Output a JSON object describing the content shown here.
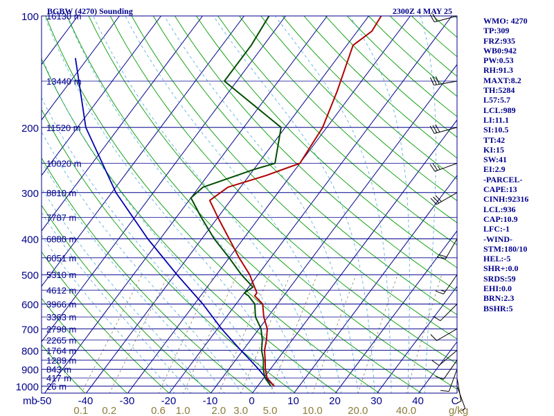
{
  "header": {
    "station": "BGBW (4270) Sounding",
    "time": "2300Z  4 MAY 25"
  },
  "colors": {
    "frame": "#00008b",
    "isobar": "#00008b",
    "isotherm": "#00008b",
    "dry_adiabat": "#009a00",
    "moist_adiabat": "#4aa7d9",
    "mixing_ratio": "#8b7d5a",
    "temperature": "#b00000",
    "dewpoint": "#004d00",
    "parcel": "#0000b0",
    "wind": "#000000",
    "mixing_label": "#8b7d3a"
  },
  "chart_data": {
    "type": "skew-t",
    "pressure_unit": "mb",
    "temperature_unit": "C",
    "mixing_ratio_unit": "g/kg",
    "pressure_axis": [
      100,
      200,
      300,
      400,
      500,
      600,
      700,
      800,
      900,
      1000
    ],
    "pressure_axis_labels": [
      "100",
      "200",
      "300",
      "400",
      "500",
      "600",
      "700",
      "800",
      "900",
      "1000"
    ],
    "pressure_range": [
      1050,
      100
    ],
    "temperature_axis": [
      -50,
      -40,
      -30,
      -20,
      -10,
      0,
      10,
      20,
      30,
      40
    ],
    "temperature_axis_labels": [
      "-50",
      "-40",
      "-30",
      "-20",
      "-10",
      "0",
      "10",
      "20",
      "30",
      "40"
    ],
    "mixing_ratio_labels": [
      "0.1",
      "0.2",
      "0.6",
      "1.0",
      "2.0",
      "3.0",
      "5.0",
      "10.0",
      "20.0",
      "40.0"
    ],
    "heights": [
      {
        "p": 100,
        "label": "16130 m"
      },
      {
        "p": 150,
        "label": "13440 m"
      },
      {
        "p": 200,
        "label": "11520 m"
      },
      {
        "p": 250,
        "label": "10020 m"
      },
      {
        "p": 300,
        "label": "8810 m"
      },
      {
        "p": 350,
        "label": "7787 m"
      },
      {
        "p": 400,
        "label": "6880 m"
      },
      {
        "p": 450,
        "label": "6051 m"
      },
      {
        "p": 500,
        "label": "5310 m"
      },
      {
        "p": 550,
        "label": "4612 m"
      },
      {
        "p": 600,
        "label": "3966 m"
      },
      {
        "p": 650,
        "label": "3363 m"
      },
      {
        "p": 700,
        "label": "2798 m"
      },
      {
        "p": 750,
        "label": "2265 m"
      },
      {
        "p": 800,
        "label": "1764 m"
      },
      {
        "p": 850,
        "label": "1289 m"
      },
      {
        "p": 900,
        "label": "843 m"
      },
      {
        "p": 950,
        "label": "417 m"
      },
      {
        "p": 1000,
        "label": "26 m"
      }
    ],
    "temperature_profile": [
      {
        "p": 1000,
        "t": 4.0
      },
      {
        "p": 950,
        "t": 0.8
      },
      {
        "p": 900,
        "t": -1.2
      },
      {
        "p": 850,
        "t": -2.9
      },
      {
        "p": 800,
        "t": -4.8
      },
      {
        "p": 750,
        "t": -6.2
      },
      {
        "p": 700,
        "t": -8.0
      },
      {
        "p": 650,
        "t": -11.0
      },
      {
        "p": 600,
        "t": -13.6
      },
      {
        "p": 570,
        "t": -17.0
      },
      {
        "p": 560,
        "t": -17.0
      },
      {
        "p": 500,
        "t": -22.0
      },
      {
        "p": 450,
        "t": -27.6
      },
      {
        "p": 400,
        "t": -33.4
      },
      {
        "p": 350,
        "t": -40.0
      },
      {
        "p": 315,
        "t": -45.0
      },
      {
        "p": 290,
        "t": -43.0
      },
      {
        "p": 270,
        "t": -36.0
      },
      {
        "p": 250,
        "t": -30.0
      },
      {
        "p": 200,
        "t": -31.0
      },
      {
        "p": 160,
        "t": -34.0
      },
      {
        "p": 120,
        "t": -38.5
      },
      {
        "p": 110,
        "t": -36.5
      },
      {
        "p": 100,
        "t": -37.0
      }
    ],
    "dewpoint_profile": [
      {
        "p": 1000,
        "t": 3.2
      },
      {
        "p": 950,
        "t": 0.3
      },
      {
        "p": 900,
        "t": -1.7
      },
      {
        "p": 850,
        "t": -3.3
      },
      {
        "p": 800,
        "t": -5.5
      },
      {
        "p": 750,
        "t": -7.2
      },
      {
        "p": 700,
        "t": -9.5
      },
      {
        "p": 650,
        "t": -13.0
      },
      {
        "p": 600,
        "t": -15.5
      },
      {
        "p": 570,
        "t": -18.5
      },
      {
        "p": 560,
        "t": -20.0
      },
      {
        "p": 540,
        "t": -19.0
      },
      {
        "p": 500,
        "t": -24.0
      },
      {
        "p": 450,
        "t": -30.0
      },
      {
        "p": 400,
        "t": -37.0
      },
      {
        "p": 350,
        "t": -44.0
      },
      {
        "p": 310,
        "t": -50.0
      },
      {
        "p": 290,
        "t": -49.0
      },
      {
        "p": 260,
        "t": -40.0
      },
      {
        "p": 250,
        "t": -36.0
      },
      {
        "p": 200,
        "t": -41.0
      },
      {
        "p": 150,
        "t": -63.0
      },
      {
        "p": 120,
        "t": -63.0
      },
      {
        "p": 100,
        "t": -64.0
      }
    ],
    "parcel_profile": [
      {
        "p": 1000,
        "t": 4.0
      },
      {
        "p": 950,
        "t": 0.5
      },
      {
        "p": 900,
        "t": -2.8
      },
      {
        "p": 850,
        "t": -6.5
      },
      {
        "p": 800,
        "t": -10.5
      },
      {
        "p": 700,
        "t": -19.0
      },
      {
        "p": 600,
        "t": -28.0
      },
      {
        "p": 500,
        "t": -39.5
      },
      {
        "p": 400,
        "t": -53.0
      },
      {
        "p": 300,
        "t": -69.0
      },
      {
        "p": 200,
        "t": -88.0
      },
      {
        "p": 130,
        "t": -103.0
      }
    ],
    "wind_barbs": [
      {
        "p": 1000,
        "dir": 160,
        "spd": 5
      },
      {
        "p": 950,
        "dir": 170,
        "spd": 5
      },
      {
        "p": 900,
        "dir": 200,
        "spd": 10
      },
      {
        "p": 850,
        "dir": 215,
        "spd": 10
      },
      {
        "p": 800,
        "dir": 230,
        "spd": 10
      },
      {
        "p": 700,
        "dir": 240,
        "spd": 10
      },
      {
        "p": 600,
        "dir": 225,
        "spd": 10
      },
      {
        "p": 500,
        "dir": 215,
        "spd": 15
      },
      {
        "p": 400,
        "dir": 210,
        "spd": 20
      },
      {
        "p": 300,
        "dir": 240,
        "spd": 30
      },
      {
        "p": 250,
        "dir": 250,
        "spd": 25
      },
      {
        "p": 200,
        "dir": 255,
        "spd": 30
      },
      {
        "p": 150,
        "dir": 260,
        "spd": 30
      },
      {
        "p": 100,
        "dir": 255,
        "spd": 20
      }
    ]
  },
  "indices": [
    "WMO: 4270",
    "TP:309",
    "FRZ:935",
    "WB0:942",
    "PW:0.53",
    "RH:91.3",
    "MAXT:8.2",
    "TH:5284",
    "L57:5.7",
    "LCL:989",
    "LI:11.1",
    "SI:10.5",
    "TT:42",
    "KI:15",
    "SW:41",
    "EI:2.9",
    "-PARCEL-",
    "CAPE:13",
    "CINH:92316",
    "LCL:936",
    "CAP:10.9",
    "LFC:-1",
    "-WIND-",
    "STM:180/10",
    "HEL:-5",
    "SHR+:0.0",
    "SRDS:59",
    "EHI:0.0",
    "BRN:2.3",
    "BSHR:5"
  ]
}
